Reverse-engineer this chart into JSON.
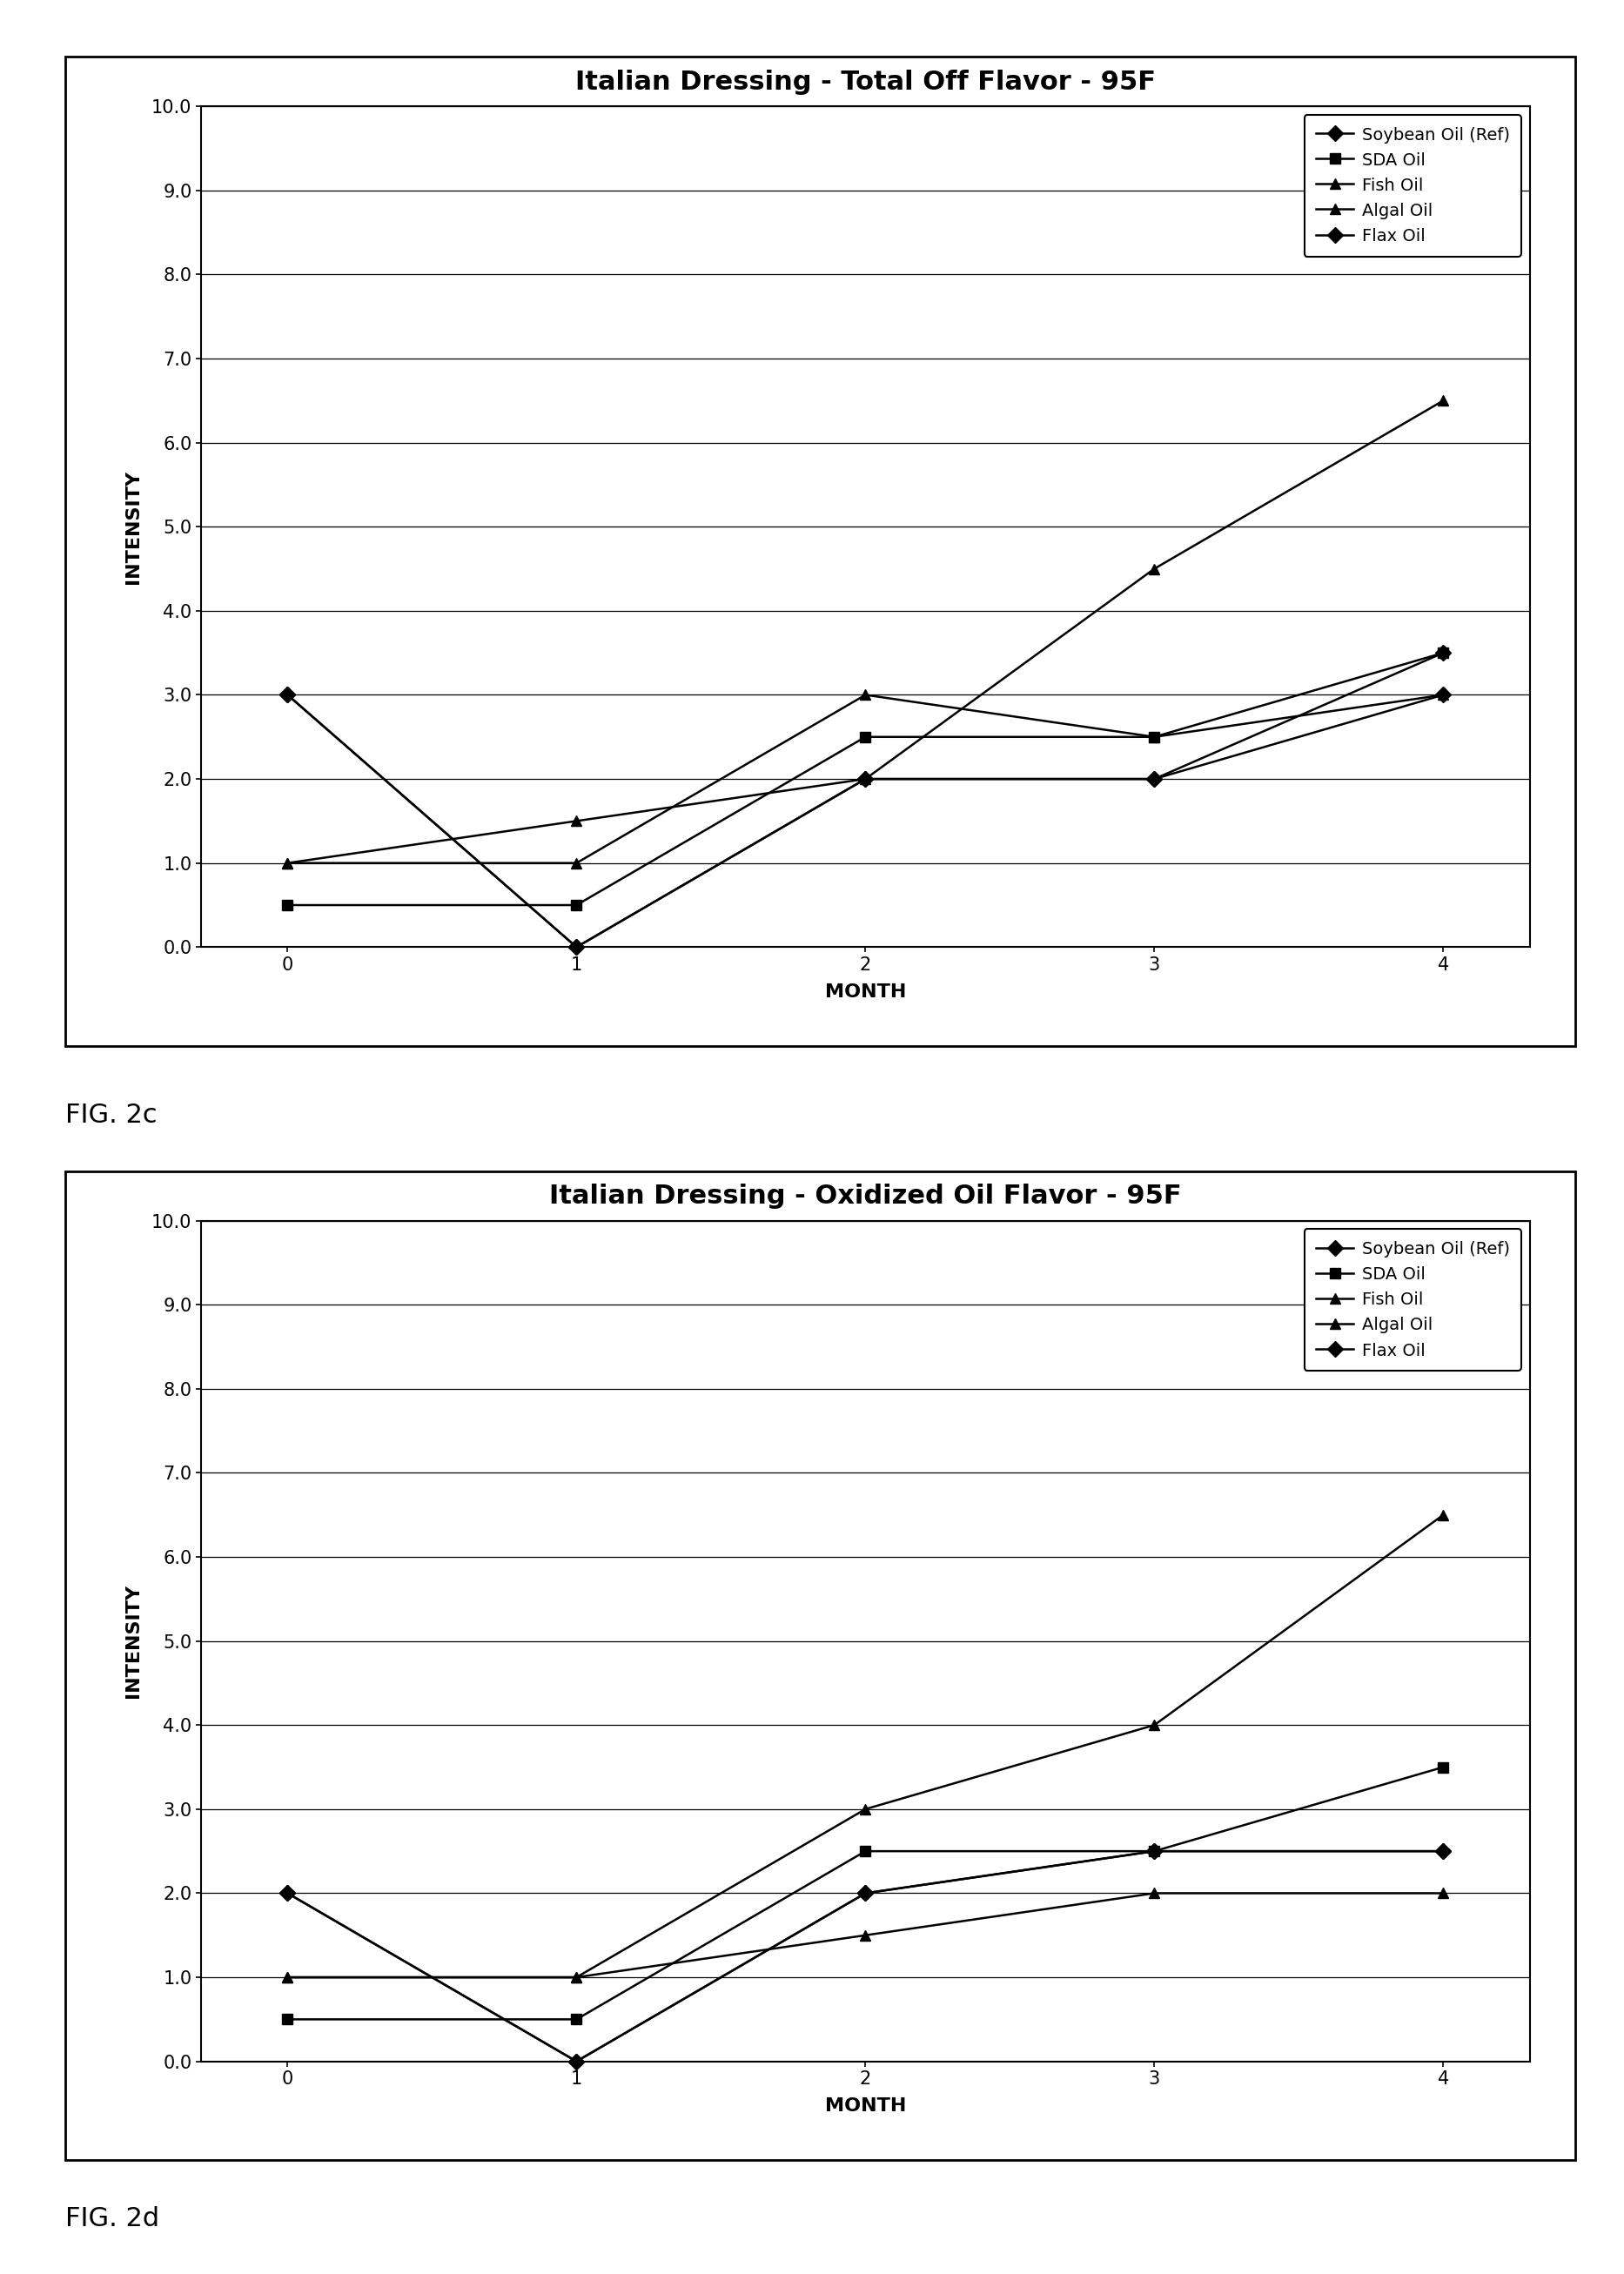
{
  "chart1": {
    "title": "Italian Dressing - Total Off Flavor - 95F",
    "series": {
      "Soybean Oil (Ref)": {
        "x": [
          0,
          1,
          2,
          3,
          4
        ],
        "y": [
          3.0,
          0.0,
          2.0,
          2.0,
          3.5
        ],
        "marker": "D",
        "linestyle": "-"
      },
      "SDA Oil": {
        "x": [
          0,
          1,
          2,
          3,
          4
        ],
        "y": [
          0.5,
          0.5,
          2.5,
          2.5,
          3.5
        ],
        "marker": "s",
        "linestyle": "-"
      },
      "Fish Oil": {
        "x": [
          0,
          1,
          2,
          3,
          4
        ],
        "y": [
          1.0,
          1.0,
          3.0,
          2.5,
          3.0
        ],
        "marker": "^",
        "linestyle": "-"
      },
      "Algal Oil": {
        "x": [
          0,
          1,
          2,
          3,
          4
        ],
        "y": [
          1.0,
          1.5,
          2.0,
          4.5,
          6.5
        ],
        "marker": "^",
        "linestyle": "-"
      },
      "Flax Oil": {
        "x": [
          0,
          1,
          2,
          3,
          4
        ],
        "y": [
          3.0,
          0.0,
          2.0,
          2.0,
          3.0
        ],
        "marker": "D",
        "linestyle": "-"
      }
    },
    "ylim": [
      0.0,
      10.0
    ],
    "yticks": [
      0.0,
      1.0,
      2.0,
      3.0,
      4.0,
      5.0,
      6.0,
      7.0,
      8.0,
      9.0,
      10.0
    ],
    "xlim": [
      -0.3,
      4.3
    ],
    "xticks": [
      0,
      1,
      2,
      3,
      4
    ],
    "xlabel": "MONTH",
    "ylabel": "INTENSITY",
    "fig_label": "FIG. 2c"
  },
  "chart2": {
    "title": "Italian Dressing - Oxidized Oil Flavor - 95F",
    "series": {
      "Soybean Oil (Ref)": {
        "x": [
          0,
          1,
          2,
          3,
          4
        ],
        "y": [
          2.0,
          0.0,
          2.0,
          2.5,
          2.5
        ],
        "marker": "D",
        "linestyle": "-"
      },
      "SDA Oil": {
        "x": [
          0,
          1,
          2,
          3,
          4
        ],
        "y": [
          0.5,
          0.5,
          2.5,
          2.5,
          3.5
        ],
        "marker": "s",
        "linestyle": "-"
      },
      "Fish Oil": {
        "x": [
          0,
          1,
          2,
          3,
          4
        ],
        "y": [
          1.0,
          1.0,
          1.5,
          2.0,
          2.0
        ],
        "marker": "^",
        "linestyle": "-"
      },
      "Algal Oil": {
        "x": [
          0,
          1,
          2,
          3,
          4
        ],
        "y": [
          1.0,
          1.0,
          3.0,
          4.0,
          6.5
        ],
        "marker": "^",
        "linestyle": "-"
      },
      "Flax Oil": {
        "x": [
          0,
          1,
          2,
          3,
          4
        ],
        "y": [
          2.0,
          0.0,
          2.0,
          2.5,
          2.5
        ],
        "marker": "D",
        "linestyle": "-"
      }
    },
    "ylim": [
      0.0,
      10.0
    ],
    "yticks": [
      0.0,
      1.0,
      2.0,
      3.0,
      4.0,
      5.0,
      6.0,
      7.0,
      8.0,
      9.0,
      10.0
    ],
    "xlim": [
      -0.3,
      4.3
    ],
    "xticks": [
      0,
      1,
      2,
      3,
      4
    ],
    "xlabel": "MONTH",
    "ylabel": "INTENSITY",
    "fig_label": "FIG. 2d"
  },
  "line_color": "#000000",
  "bg_color": "#ffffff",
  "legend_order": [
    "Soybean Oil (Ref)",
    "SDA Oil",
    "Fish Oil",
    "Algal Oil",
    "Flax Oil"
  ],
  "series_markers": {
    "Soybean Oil (Ref)": "D",
    "SDA Oil": "s",
    "Fish Oil": "^",
    "Algal Oil": "^",
    "Flax Oil": "D"
  },
  "title_fontsize": 22,
  "axis_label_fontsize": 16,
  "tick_fontsize": 15,
  "legend_fontsize": 14,
  "fig_label_fontsize": 22,
  "markersize": 9,
  "linewidth": 1.8
}
